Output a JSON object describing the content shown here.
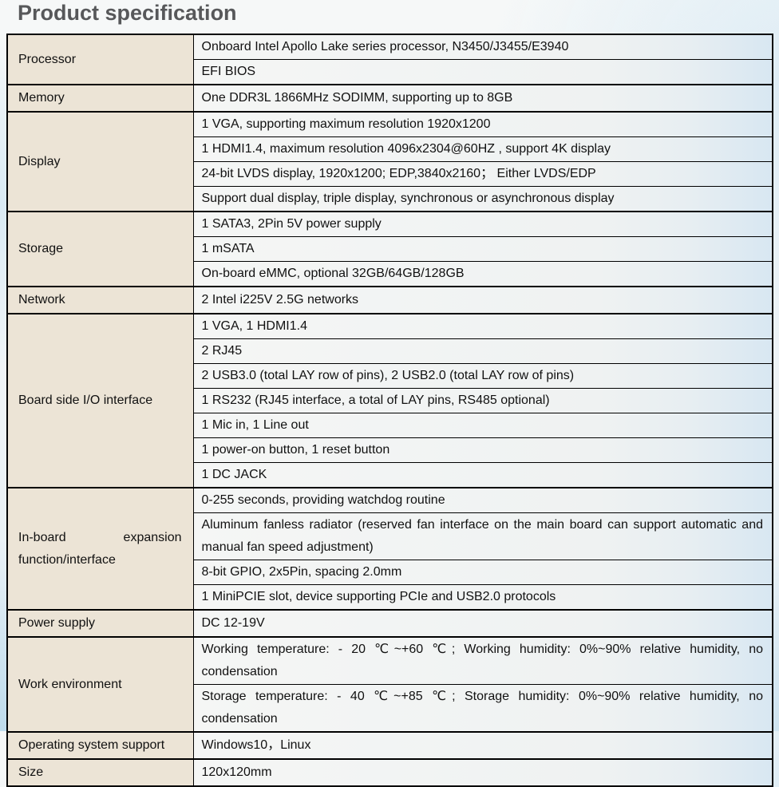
{
  "page": {
    "title": "Product specification"
  },
  "colors": {
    "title_text": "#57585a",
    "category_cell_bg": "#ece4d6",
    "value_cell_bg": "#f5f6f5",
    "value_cell_bg_right_tint": "#d8e7f2",
    "table_border": "#000000",
    "page_corner_accent": "#b9d8ea"
  },
  "table": {
    "rows": [
      {
        "category": "Processor",
        "values": [
          "Onboard Intel Apollo Lake series processor, N3450/J3455/E3940",
          "EFI BIOS"
        ]
      },
      {
        "category": "Memory",
        "values": [
          "One DDR3L 1866MHz SODIMM, supporting up to 8GB"
        ]
      },
      {
        "category": "Display",
        "values": [
          "1 VGA, supporting maximum resolution 1920x1200",
          "1 HDMI1.4, maximum resolution 4096x2304@60HZ , support 4K display",
          "24-bit LVDS display, 1920x1200; EDP,3840x2160； Either LVDS/EDP",
          "Support dual display, triple display, synchronous or asynchronous display"
        ]
      },
      {
        "category": "Storage",
        "values": [
          "1 SATA3, 2Pin 5V power supply",
          "1 mSATA",
          "On-board eMMC, optional 32GB/64GB/128GB"
        ]
      },
      {
        "category": "Network",
        "values": [
          "2 Intel i225V 2.5G networks"
        ]
      },
      {
        "category": "Board side I/O interface",
        "values": [
          "1 VGA, 1 HDMI1.4",
          "2 RJ45",
          "2 USB3.0 (total LAY row of pins), 2 USB2.0 (total LAY row of pins)",
          "1 RS232 (RJ45 interface, a total of LAY pins, RS485 optional)",
          "1 Mic in, 1 Line out",
          "1 power-on button, 1 reset button",
          "1 DC JACK"
        ]
      },
      {
        "category": "In-board expansion function/interface",
        "values": [
          "0-255 seconds, providing watchdog routine",
          "Aluminum fanless radiator (reserved fan interface on the main board can support automatic and manual fan speed adjustment)",
          "8-bit GPIO, 2x5Pin, spacing 2.0mm",
          "1 MiniPCIE slot, device supporting PCIe and USB2.0 protocols"
        ]
      },
      {
        "category": "Power supply",
        "values": [
          "DC 12-19V"
        ]
      },
      {
        "category": "Work environment",
        "values": [
          "Working temperature: - 20 ℃~+60 ℃; Working humidity: 0%~90% relative humidity, no condensation",
          "Storage temperature: - 40 ℃~+85 ℃; Storage humidity: 0%~90% relative humidity, no condensation"
        ]
      },
      {
        "category": "Operating system support",
        "values": [
          "Windows10，Linux"
        ]
      },
      {
        "category": "Size",
        "values": [
          "120x120mm"
        ]
      }
    ]
  }
}
